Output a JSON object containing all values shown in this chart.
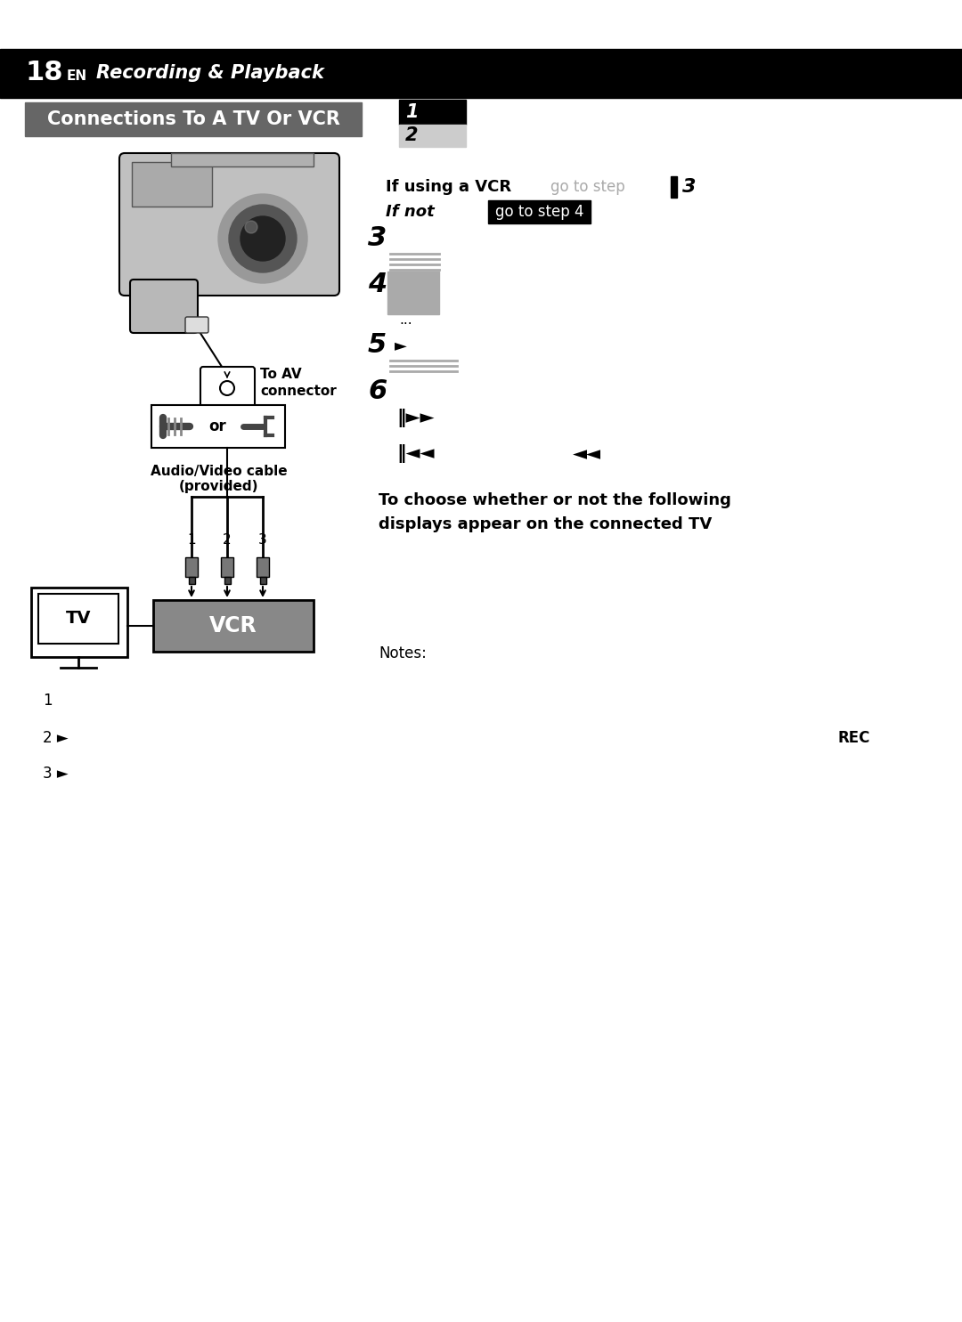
{
  "bg_color": "#ffffff",
  "header_bar_color": "#000000",
  "section_bar_color": "#666666",
  "header_page": "18",
  "header_en": "EN",
  "header_title": "Recording & Playback",
  "section_title": "Connections To A TV Or VCR",
  "if_vcr_text": "If using a VCR",
  "go_to_step_text": "go to step",
  "step3_italic": "3",
  "if_not_text": "If not",
  "go_to_step4_box": "go to step 4",
  "av_connector": "To AV\nconnector",
  "or_text": "or",
  "cable_text": "Audio/Video cable\n(provided)",
  "step5_arrow": "►",
  "step6_fwd": "‖►►",
  "step6_rew": "‖◄◄",
  "step6_rev2": "◄◄",
  "choose_text_line1": "To choose whether or not the following",
  "choose_text_line2": "displays appear on the connected TV",
  "notes_text": "Notes:",
  "note1": "1",
  "note2_prefix": "2 ►",
  "note2_rec": "REC",
  "note3_prefix": "3 ►",
  "tv_label": "TV",
  "vcr_label": "VCR",
  "step1": "1",
  "step2": "2",
  "step3": "3",
  "step4": "4",
  "step5": "5",
  "step6": "6"
}
